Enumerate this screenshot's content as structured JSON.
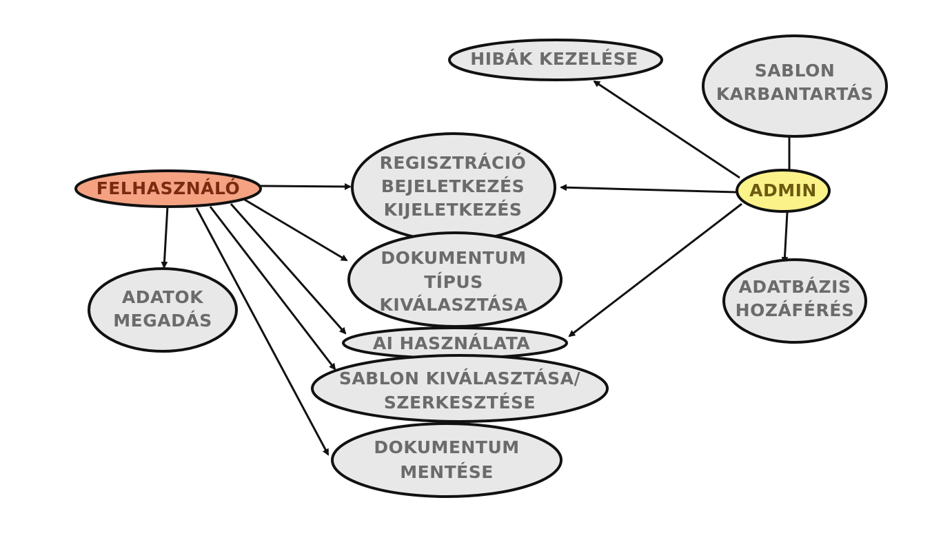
{
  "colors": {
    "usecase_fill": "#e8e8e8",
    "user_fill": "#f4a282",
    "admin_fill": "#fbf28a",
    "line": "#111111",
    "text_gray": "#6b6b6b"
  },
  "actors": {
    "user": {
      "label": "FELHASZNÁLÓ"
    },
    "admin": {
      "label": "ADMIN"
    }
  },
  "usecases": {
    "hibak": {
      "lines": [
        "HIBÁK KEZELÉSE"
      ]
    },
    "sablon_karb": {
      "lines": [
        "SABLON",
        "KARBANTARTÁS"
      ]
    },
    "regisztracio": {
      "lines": [
        "REGISZTRÁCIÓ",
        "BEJELETKEZÉS",
        "KIJELETKEZÉS"
      ]
    },
    "dok_tipus": {
      "lines": [
        "DOKUMENTUM",
        "TÍPUS",
        "KIVÁLASZTÁSA"
      ]
    },
    "adatok": {
      "lines": [
        "ADATOK",
        "MEGADÁS"
      ]
    },
    "ai": {
      "lines": [
        "AI HASZNÁLATA"
      ]
    },
    "sablon_kiv": {
      "lines": [
        "SABLON KIVÁLASZTÁSA/",
        "SZERKESZTÉSE"
      ]
    },
    "adatbazis": {
      "lines": [
        "ADATBÁZIS",
        "HOZÁFÉRÉS"
      ]
    },
    "dok_mentes": {
      "lines": [
        "DOKUMENTUM",
        "MENTÉSE"
      ]
    }
  }
}
